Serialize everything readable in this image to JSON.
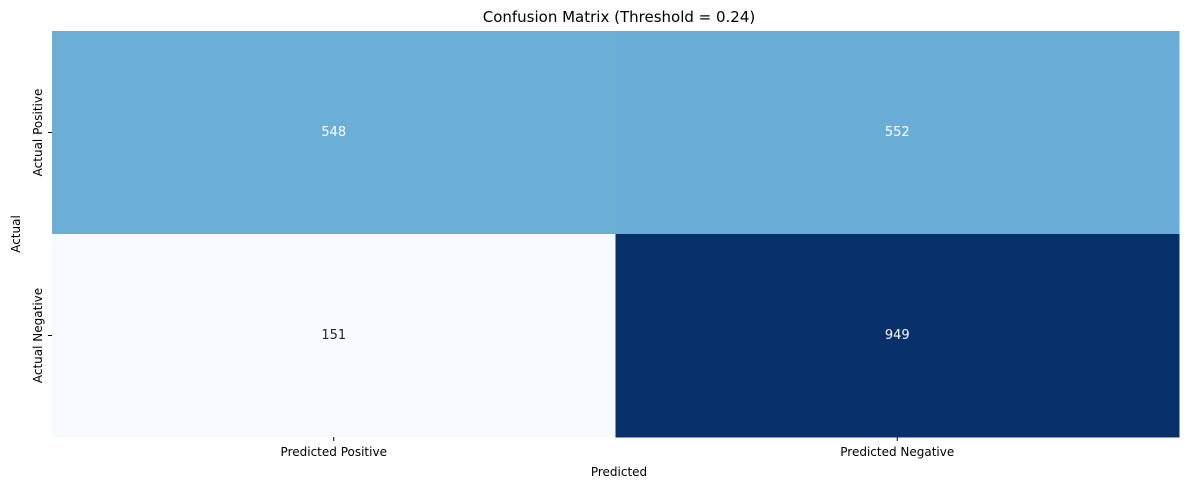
{
  "chart_data": {
    "type": "heatmap",
    "title": "Confusion Matrix (Threshold = 0.24)",
    "xlabel": "Predicted",
    "ylabel": "Actual",
    "x_categories": [
      "Predicted Positive",
      "Predicted Negative"
    ],
    "y_categories": [
      "Actual Positive",
      "Actual Negative"
    ],
    "values": [
      [
        548,
        552
      ],
      [
        151,
        949
      ]
    ],
    "colormap": "Blues",
    "colorbar": false,
    "annotations": true
  }
}
